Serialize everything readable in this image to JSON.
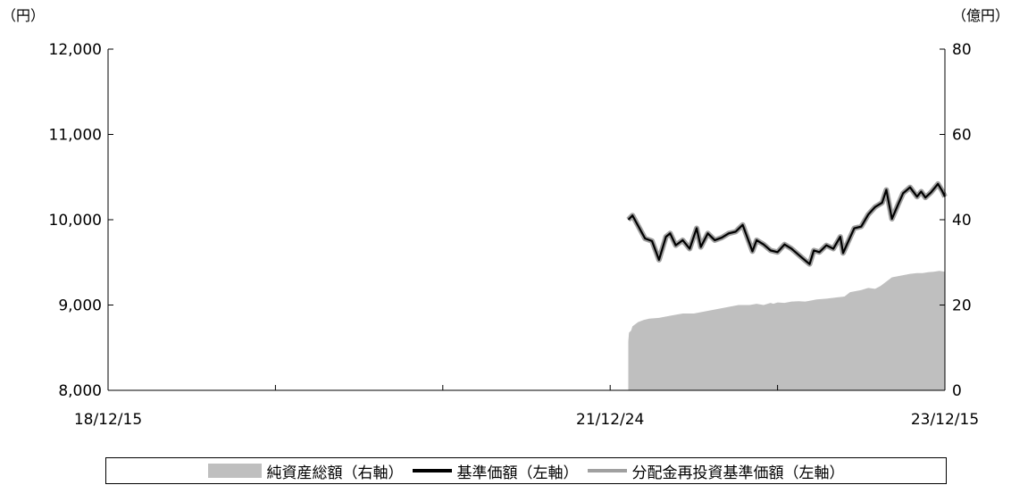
{
  "chart_data": {
    "type": "line",
    "x_tick_labels": [
      "18/12/15",
      "21/12/24",
      "23/12/15"
    ],
    "left_axis": {
      "unit": "（円）",
      "range": [
        8000,
        12000
      ],
      "ticks": [
        "12,000",
        "11,000",
        "10,000",
        "9,000",
        "8,000"
      ]
    },
    "right_axis": {
      "unit": "（億円）",
      "range": [
        0,
        80
      ],
      "ticks": [
        "80",
        "60",
        "40",
        "20",
        "0"
      ]
    },
    "x_range_months": [
      0,
      60
    ],
    "series": [
      {
        "name": "純資産総額（右軸）",
        "kind": "area",
        "axis": "right",
        "color": "#bfbfbf",
        "x": [
          37.3,
          37.35,
          37.5,
          37.6,
          37.8,
          38.0,
          38.4,
          38.8,
          39.5,
          40.3,
          41.2,
          42.0,
          42.8,
          43.6,
          44.4,
          45.2,
          46.0,
          46.5,
          47.0,
          47.5,
          47.7,
          48.0,
          48.5,
          49.0,
          49.5,
          50.0,
          50.3,
          50.8,
          51.5,
          52.3,
          52.8,
          53.2,
          54.0,
          54.5,
          55.0,
          55.4,
          55.8,
          56.2,
          57.0,
          57.5,
          58.0,
          58.4,
          58.8,
          59.2,
          59.6,
          60.0
        ],
        "values": [
          11.5,
          13.5,
          14.0,
          15.0,
          15.5,
          16.0,
          16.5,
          16.8,
          17.0,
          17.5,
          18.0,
          18.0,
          18.5,
          19.0,
          19.5,
          20.0,
          20.0,
          20.3,
          20.0,
          20.5,
          20.3,
          20.6,
          20.5,
          20.8,
          20.9,
          20.8,
          21.0,
          21.3,
          21.5,
          21.8,
          22.0,
          23.0,
          23.5,
          24.0,
          23.8,
          24.5,
          25.5,
          26.5,
          27.0,
          27.3,
          27.5,
          27.5,
          27.7,
          27.8,
          28.0,
          27.8
        ]
      },
      {
        "name": "基準価額（左軸）",
        "kind": "line",
        "axis": "left",
        "color": "#000000",
        "x": [
          37.3,
          37.6,
          38.1,
          38.5,
          39.0,
          39.5,
          40.0,
          40.3,
          40.7,
          41.2,
          41.7,
          42.2,
          42.5,
          43.0,
          43.5,
          44.0,
          44.5,
          45.0,
          45.5,
          46.2,
          46.5,
          47.0,
          47.5,
          48.0,
          48.5,
          49.0,
          49.5,
          50.0,
          50.3,
          50.6,
          51.0,
          51.5,
          52.0,
          52.5,
          52.7,
          53.0,
          53.5,
          54.0,
          54.5,
          55.0,
          55.5,
          55.8,
          56.2,
          56.7,
          57.0,
          57.5,
          58.0,
          58.3,
          58.6,
          59.0,
          59.5,
          59.8,
          60.0
        ],
        "values": [
          10000,
          10050,
          9900,
          9780,
          9750,
          9530,
          9800,
          9840,
          9700,
          9760,
          9660,
          9900,
          9680,
          9840,
          9760,
          9790,
          9840,
          9860,
          9940,
          9630,
          9760,
          9710,
          9640,
          9620,
          9710,
          9660,
          9590,
          9520,
          9480,
          9640,
          9620,
          9700,
          9660,
          9800,
          9610,
          9720,
          9900,
          9920,
          10060,
          10150,
          10200,
          10350,
          10010,
          10200,
          10310,
          10380,
          10270,
          10330,
          10260,
          10320,
          10420,
          10340,
          10270
        ]
      },
      {
        "name": "分配金再投資基準価額（左軸）",
        "kind": "line",
        "axis": "left",
        "color": "#a0a0a0",
        "x": [
          37.3,
          37.6,
          38.1,
          38.5,
          39.0,
          39.5,
          40.0,
          40.3,
          40.7,
          41.2,
          41.7,
          42.2,
          42.5,
          43.0,
          43.5,
          44.0,
          44.5,
          45.0,
          45.5,
          46.2,
          46.5,
          47.0,
          47.5,
          48.0,
          48.5,
          49.0,
          49.5,
          50.0,
          50.3,
          50.6,
          51.0,
          51.5,
          52.0,
          52.5,
          52.7,
          53.0,
          53.5,
          54.0,
          54.5,
          55.0,
          55.5,
          55.8,
          56.2,
          56.7,
          57.0,
          57.5,
          58.0,
          58.3,
          58.6,
          59.0,
          59.5,
          59.8,
          60.0
        ],
        "values": [
          10000,
          10050,
          9900,
          9780,
          9750,
          9530,
          9800,
          9840,
          9700,
          9760,
          9660,
          9900,
          9680,
          9840,
          9760,
          9790,
          9840,
          9860,
          9940,
          9630,
          9760,
          9710,
          9640,
          9620,
          9710,
          9660,
          9590,
          9520,
          9480,
          9640,
          9620,
          9700,
          9660,
          9800,
          9610,
          9720,
          9900,
          9920,
          10060,
          10150,
          10200,
          10350,
          10010,
          10200,
          10310,
          10380,
          10270,
          10330,
          10260,
          10320,
          10420,
          10340,
          10270
        ]
      }
    ],
    "grid": false,
    "legend_position": "bottom"
  }
}
